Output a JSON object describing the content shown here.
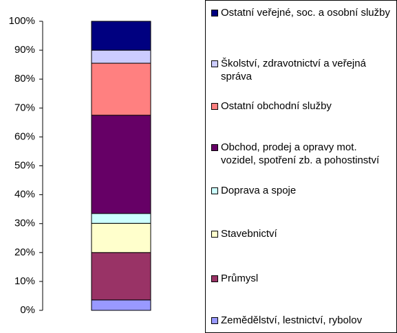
{
  "chart_data": {
    "type": "stacked_bar",
    "categories": [
      null
    ],
    "series": [
      {
        "name": "Zemědělství, lestnictví, rybolov",
        "color": "#9999ff",
        "values": [
          3.6
        ]
      },
      {
        "name": "Průmysl",
        "color": "#993366",
        "values": [
          16.4
        ]
      },
      {
        "name": "Stavebnictví",
        "color": "#ffffcc",
        "values": [
          10.1
        ]
      },
      {
        "name": "Doprava a spoje",
        "color": "#ccffff",
        "values": [
          3.4
        ]
      },
      {
        "name": "Obchod, prodej a opravy mot. vozidel, spotření zb. a pohostinství",
        "color": "#660066",
        "values": [
          34
        ]
      },
      {
        "name": "Ostatní obchodní služby",
        "color": "#ff8080",
        "values": [
          18
        ]
      },
      {
        "name": "Školství, zdravotnictví a veřejná správa",
        "color": "#ccccff",
        "values": [
          4.5
        ]
      },
      {
        "name": "Ostatní veřejné, soc. a osobní služby",
        "color": "#000080",
        "values": [
          10
        ]
      }
    ],
    "ylim": [
      0,
      100
    ],
    "yticks": [
      {
        "value": 0,
        "label": "0%"
      },
      {
        "value": 10,
        "label": "10%"
      },
      {
        "value": 20,
        "label": "20%"
      },
      {
        "value": 30,
        "label": "30%"
      },
      {
        "value": 40,
        "label": "40%"
      },
      {
        "value": 50,
        "label": "50%"
      },
      {
        "value": 60,
        "label": "60%"
      },
      {
        "value": 70,
        "label": "70%"
      },
      {
        "value": 80,
        "label": "80%"
      },
      {
        "value": 90,
        "label": "90%"
      },
      {
        "value": 100,
        "label": "100%"
      }
    ],
    "legend": "right"
  }
}
